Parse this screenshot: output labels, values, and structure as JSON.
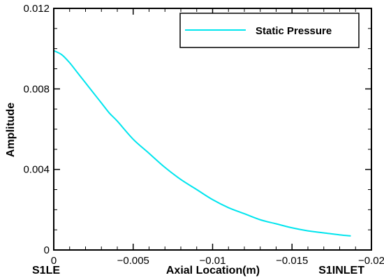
{
  "chart_data": {
    "type": "line",
    "xlabel": "Axial Location(m)",
    "ylabel": "Amplitude",
    "xlim": [
      0,
      -0.02
    ],
    "ylim": [
      0,
      0.012
    ],
    "x_ticks": [
      0,
      -0.005,
      -0.01,
      -0.015,
      -0.02
    ],
    "x_tick_labels": [
      "0",
      "−0.005",
      "−0.01",
      "−0.015",
      "−0.02"
    ],
    "y_ticks": [
      0,
      0.004,
      0.008,
      0.012
    ],
    "y_tick_labels": [
      "0",
      "0.004",
      "0.008",
      "0.012"
    ],
    "grid": false,
    "legend_position": "top-right",
    "annotations": {
      "left": "S1LE",
      "right": "S1INLET"
    },
    "series": [
      {
        "name": "Static Pressure",
        "color": "#00e5ee",
        "x": [
          0,
          -0.0005,
          -0.001,
          -0.0015,
          -0.002,
          -0.0025,
          -0.003,
          -0.0035,
          -0.004,
          -0.005,
          -0.006,
          -0.007,
          -0.008,
          -0.009,
          -0.01,
          -0.011,
          -0.012,
          -0.013,
          -0.014,
          -0.015,
          -0.016,
          -0.017,
          -0.018,
          -0.0187
        ],
        "y": [
          0.0099,
          0.0097,
          0.0093,
          0.0088,
          0.0083,
          0.0078,
          0.0073,
          0.0068,
          0.0064,
          0.0055,
          0.0048,
          0.0041,
          0.0035,
          0.003,
          0.0025,
          0.0021,
          0.0018,
          0.0015,
          0.0013,
          0.0011,
          0.00095,
          0.00085,
          0.00075,
          0.0007
        ]
      }
    ]
  }
}
